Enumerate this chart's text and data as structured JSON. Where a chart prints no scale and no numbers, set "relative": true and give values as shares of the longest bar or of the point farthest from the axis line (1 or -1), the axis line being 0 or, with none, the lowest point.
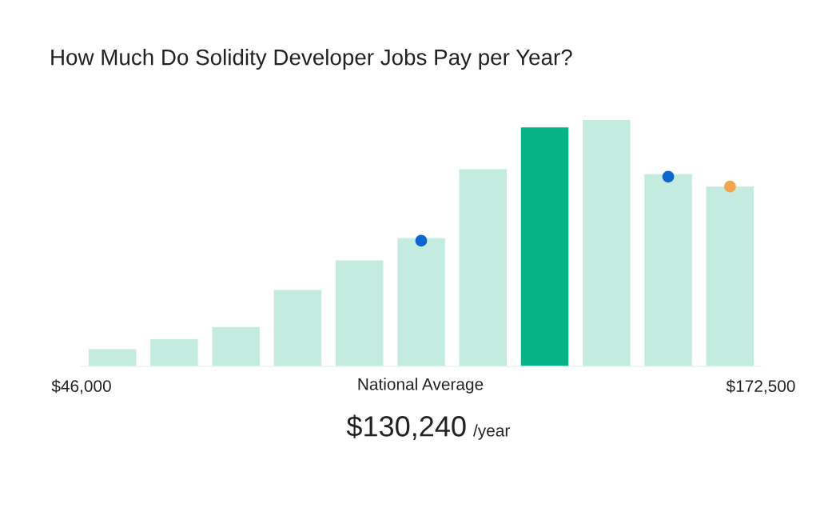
{
  "chart_data": {
    "type": "bar",
    "title": "How Much Do Solidity Developer Jobs Pay per Year?",
    "relative": true,
    "x": [
      51750,
      63250,
      74750,
      86250,
      97750,
      109250,
      120750,
      132250,
      143750,
      155250,
      166750
    ],
    "values": [
      0.07,
      0.11,
      0.16,
      0.31,
      0.43,
      0.52,
      0.8,
      0.97,
      1.0,
      0.78,
      0.73
    ],
    "colors": [
      "#c3ebdf",
      "#c3ebdf",
      "#c3ebdf",
      "#c3ebdf",
      "#c3ebdf",
      "#c3ebdf",
      "#c3ebdf",
      "#05b386",
      "#c3ebdf",
      "#c3ebdf",
      "#c3ebdf"
    ],
    "xlim": [
      46000,
      172500
    ],
    "xticks": [
      {
        "value": 46000,
        "label": "$46,000"
      },
      {
        "value": 172500,
        "label": "$172,500"
      }
    ],
    "series": [
      {
        "type": "scatter",
        "color": "#0b66d0",
        "x": [
          109250,
          155250
        ],
        "values": [
          0.51,
          0.77
        ]
      },
      {
        "type": "scatter",
        "color": "#f2a54c",
        "x": [
          166750
        ],
        "values": [
          0.73
        ]
      }
    ],
    "annotations": [
      "National Average",
      "$130,240",
      "/year"
    ]
  }
}
